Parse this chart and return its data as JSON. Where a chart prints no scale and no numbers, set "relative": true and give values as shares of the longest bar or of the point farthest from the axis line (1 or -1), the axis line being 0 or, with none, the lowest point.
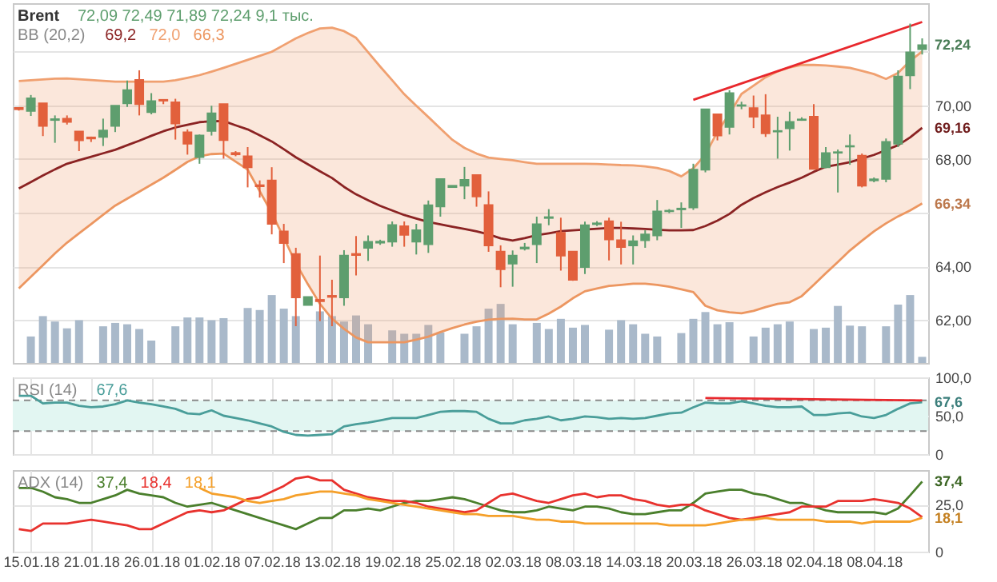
{
  "chart_data": [
    {
      "type": "candlestick",
      "title": "Brent",
      "subtitle": "72,09  72,49  71,89  72,24  9,1 тыс.",
      "legend_title": "BB (20,2)",
      "grid": true,
      "tick_labels": "y",
      "categories": [
        null,
        "15.01.18",
        null,
        null,
        null,
        null,
        "21.01.18",
        null,
        null,
        null,
        null,
        "26.01.18",
        null,
        null,
        null,
        null,
        "01.02.18",
        null,
        null,
        null,
        null,
        "07.02.18",
        null,
        null,
        null,
        null,
        "13.02.18",
        null,
        null,
        null,
        null,
        "19.02.18",
        null,
        null,
        null,
        null,
        "25.02.18",
        null,
        null,
        null,
        null,
        "02.03.18",
        null,
        null,
        null,
        null,
        "08.03.18",
        null,
        null,
        null,
        null,
        "14.03.18",
        null,
        null,
        null,
        null,
        "20.03.18",
        null,
        null,
        null,
        null,
        "26.03.18",
        null,
        null,
        null,
        null,
        "02.04.18",
        null,
        null,
        null,
        null,
        "08.04.18",
        null,
        null,
        null,
        null
      ],
      "ohlc": [
        [
          69.9,
          69.9,
          69.8,
          69.85
        ],
        [
          69.79,
          70.38,
          69.6,
          70.26
        ],
        [
          70.07,
          70.07,
          68.85,
          69.23
        ],
        [
          69.45,
          69.62,
          68.6,
          69.48
        ],
        [
          69.5,
          69.62,
          69.28,
          69.38
        ],
        [
          69.02,
          69.02,
          68.29,
          68.69
        ],
        [
          68.8,
          68.83,
          68.63,
          68.76
        ],
        [
          68.82,
          69.5,
          68.48,
          69.06
        ],
        [
          69.23,
          69.98,
          69.0,
          69.98
        ],
        [
          70.07,
          70.92,
          69.94,
          70.56
        ],
        [
          70.94,
          71.3,
          69.62,
          70.04
        ],
        [
          69.74,
          70.45,
          69.66,
          70.15
        ],
        [
          70.2,
          70.2,
          70.04,
          70.17
        ],
        [
          70.11,
          70.24,
          68.72,
          69.32
        ],
        [
          68.99,
          69.1,
          68.16,
          68.57
        ],
        [
          68.07,
          68.91,
          67.82,
          68.87
        ],
        [
          69.04,
          69.98,
          68.87,
          69.7
        ],
        [
          70.04,
          70.04,
          68.01,
          68.7
        ],
        [
          68.22,
          68.29,
          68.1,
          68.17
        ],
        [
          68.1,
          68.44,
          66.94,
          67.69
        ],
        [
          67.02,
          67.2,
          66.56,
          66.98
        ],
        [
          67.2,
          67.69,
          65.19,
          65.58
        ],
        [
          65.3,
          65.58,
          64.12,
          64.87
        ],
        [
          64.46,
          64.69,
          61.77,
          62.84
        ],
        [
          62.56,
          62.86,
          62.56,
          62.86
        ],
        [
          62.75,
          64.4,
          61.96,
          62.7
        ],
        [
          62.9,
          63.5,
          61.77,
          62.86
        ],
        [
          62.84,
          64.6,
          62.53,
          64.4
        ],
        [
          64.46,
          65.13,
          63.66,
          64.42
        ],
        [
          64.69,
          65.15,
          64.2,
          64.91
        ],
        [
          64.88,
          64.99,
          64.8,
          64.92
        ],
        [
          64.92,
          65.67,
          64.73,
          65.54
        ],
        [
          65.49,
          65.67,
          64.73,
          65.17
        ],
        [
          64.92,
          65.58,
          64.44,
          65.34
        ],
        [
          64.82,
          66.45,
          64.5,
          66.27
        ],
        [
          66.23,
          67.25,
          65.85,
          67.25
        ],
        [
          66.95,
          67.0,
          66.95,
          67.0
        ],
        [
          67.0,
          67.7,
          66.5,
          67.22
        ],
        [
          67.4,
          67.4,
          66.22,
          66.6
        ],
        [
          66.28,
          66.79,
          64.54,
          64.78
        ],
        [
          64.55,
          64.78,
          63.22,
          63.89
        ],
        [
          64.1,
          64.59,
          63.24,
          64.4
        ],
        [
          64.66,
          64.87,
          64.59,
          64.7
        ],
        [
          64.82,
          65.85,
          64.12,
          65.57
        ],
        [
          65.8,
          66.13,
          65.53,
          65.83
        ],
        [
          65.25,
          65.81,
          63.84,
          64.4
        ],
        [
          64.55,
          64.55,
          63.46,
          63.5
        ],
        [
          63.97,
          65.66,
          63.71,
          65.53
        ],
        [
          65.57,
          65.68,
          65.5,
          65.6
        ],
        [
          65.68,
          65.81,
          64.22,
          65.0
        ],
        [
          64.97,
          65.66,
          64.07,
          64.72
        ],
        [
          64.78,
          65.15,
          64.07,
          64.93
        ],
        [
          64.97,
          65.34,
          64.69,
          65.19
        ],
        [
          65.15,
          66.47,
          64.97,
          66.04
        ],
        [
          66.05,
          66.13,
          65.98,
          66.07
        ],
        [
          66.12,
          66.38,
          65.43,
          66.15
        ],
        [
          66.19,
          67.82,
          66.1,
          67.6
        ],
        [
          67.6,
          69.85,
          67.5,
          69.85
        ],
        [
          69.66,
          69.66,
          68.69,
          68.87
        ],
        [
          69.19,
          70.56,
          68.91,
          70.45
        ],
        [
          69.98,
          70.13,
          69.85,
          70.0
        ],
        [
          69.89,
          70.36,
          69.15,
          69.57
        ],
        [
          69.62,
          70.41,
          68.82,
          68.95
        ],
        [
          69.02,
          69.57,
          68.01,
          69.04
        ],
        [
          69.14,
          69.76,
          68.31,
          69.38
        ],
        [
          69.45,
          69.55,
          69.42,
          69.47
        ],
        [
          69.57,
          70.04,
          67.63,
          67.63
        ],
        [
          67.69,
          68.44,
          67.65,
          68.22
        ],
        [
          68.23,
          68.35,
          66.75,
          68.25
        ],
        [
          68.46,
          68.91,
          67.78,
          68.48
        ],
        [
          68.12,
          68.2,
          66.94,
          67.0
        ],
        [
          67.2,
          67.31,
          67.13,
          67.24
        ],
        [
          67.26,
          68.76,
          67.13,
          68.63
        ],
        [
          68.57,
          71.3,
          68.44,
          71.07
        ],
        [
          71.11,
          73.04,
          70.6,
          71.97
        ],
        [
          72.09,
          72.49,
          71.89,
          72.24
        ]
      ],
      "colors": [
        "#e2603c",
        "#5e9e6e",
        "#e2603c",
        "#5e9e6e",
        "#e2603c",
        "#e2603c",
        "#e2603c",
        "#5e9e6e",
        "#5e9e6e",
        "#5e9e6e",
        "#e2603c",
        "#5e9e6e",
        "#e2603c",
        "#e2603c",
        "#e2603c",
        "#5e9e6e",
        "#5e9e6e",
        "#e2603c",
        "#e2603c",
        "#e2603c",
        "#e2603c",
        "#e2603c",
        "#e2603c",
        "#e2603c",
        "#5e9e6e",
        "#e2603c",
        "#e2603c",
        "#5e9e6e",
        "#e2603c",
        "#5e9e6e",
        "#5e9e6e",
        "#5e9e6e",
        "#e2603c",
        "#5e9e6e",
        "#5e9e6e",
        "#5e9e6e",
        "#5e9e6e",
        "#5e9e6e",
        "#e2603c",
        "#e2603c",
        "#e2603c",
        "#5e9e6e",
        "#5e9e6e",
        "#5e9e6e",
        "#5e9e6e",
        "#e2603c",
        "#e2603c",
        "#5e9e6e",
        "#5e9e6e",
        "#e2603c",
        "#e2603c",
        "#5e9e6e",
        "#5e9e6e",
        "#5e9e6e",
        "#5e9e6e",
        "#5e9e6e",
        "#5e9e6e",
        "#5e9e6e",
        "#e2603c",
        "#5e9e6e",
        "#5e9e6e",
        "#e2603c",
        "#e2603c",
        "#5e9e6e",
        "#5e9e6e",
        "#5e9e6e",
        "#e2603c",
        "#5e9e6e",
        "#5e9e6e",
        "#5e9e6e",
        "#e2603c",
        "#5e9e6e",
        "#5e9e6e",
        "#5e9e6e",
        "#5e9e6e",
        "#5e9e6e"
      ],
      "series": [
        {
          "name": "69,2",
          "type": "line",
          "color": "#8b2323",
          "values": [
            66.9,
            67.14,
            67.38,
            67.61,
            67.82,
            67.95,
            68.08,
            68.21,
            68.34,
            68.51,
            68.68,
            68.86,
            69.03,
            69.17,
            69.27,
            69.37,
            69.4,
            69.41,
            69.25,
            69.1,
            68.88,
            68.65,
            68.36,
            68.06,
            67.8,
            67.54,
            67.29,
            66.96,
            66.68,
            66.46,
            66.25,
            66.08,
            65.91,
            65.78,
            65.65,
            65.56,
            65.47,
            65.39,
            65.3,
            65.19,
            65.04,
            64.96,
            65.05,
            65.16,
            65.23,
            65.31,
            65.34,
            65.37,
            65.4,
            65.43,
            65.43,
            65.41,
            65.39,
            65.36,
            65.34,
            65.34,
            65.35,
            65.5,
            65.7,
            65.95,
            66.29,
            66.54,
            66.76,
            66.95,
            67.12,
            67.3,
            67.52,
            67.71,
            67.79,
            67.88,
            68.01,
            68.15,
            68.33,
            68.51,
            68.8,
            69.16
          ],
          "value_labels": [
            null,
            null,
            null,
            null,
            null,
            null,
            null,
            null,
            null,
            null,
            null,
            null,
            null,
            null,
            null,
            null,
            null,
            null,
            null,
            null,
            null,
            null,
            null,
            null,
            null,
            null,
            null,
            null,
            null,
            null,
            null,
            null,
            null,
            null,
            null,
            null,
            null,
            null,
            null,
            null,
            null,
            null,
            null,
            null,
            null,
            null,
            null,
            null,
            null,
            null,
            null,
            null,
            null,
            null,
            null,
            null,
            null,
            null,
            null,
            null,
            null,
            null,
            null,
            null,
            null,
            null,
            null,
            null,
            null,
            null,
            null,
            null,
            null,
            null,
            null,
            "69,16"
          ],
          "upper": [
            70.9,
            70.93,
            70.96,
            70.99,
            71.0,
            70.97,
            70.94,
            70.91,
            70.88,
            70.88,
            70.88,
            70.88,
            70.88,
            70.93,
            71.02,
            71.12,
            71.25,
            71.39,
            71.54,
            71.69,
            71.84,
            71.99,
            72.24,
            72.49,
            72.69,
            72.86,
            72.89,
            72.76,
            72.51,
            71.97,
            71.44,
            70.93,
            70.41,
            69.98,
            69.56,
            69.13,
            68.71,
            68.41,
            68.2,
            68.05,
            68.0,
            67.95,
            67.88,
            67.82,
            67.82,
            67.82,
            67.82,
            67.82,
            67.81,
            67.79,
            67.77,
            67.76,
            67.72,
            67.66,
            67.55,
            67.35,
            67.65,
            68.16,
            69.01,
            69.68,
            70.42,
            70.73,
            71.04,
            71.26,
            71.41,
            71.5,
            71.5,
            71.48,
            71.44,
            71.39,
            71.28,
            71.16,
            70.98,
            71.2,
            71.65,
            72.0
          ],
          "lower": [
            63.18,
            63.61,
            64.04,
            64.48,
            64.88,
            65.23,
            65.57,
            65.92,
            66.26,
            66.52,
            66.78,
            67.04,
            67.3,
            67.59,
            67.89,
            68.1,
            68.18,
            68.2,
            67.9,
            67.6,
            66.8,
            65.99,
            65.06,
            64.12,
            63.33,
            62.6,
            62.05,
            61.67,
            61.35,
            61.17,
            61.17,
            61.17,
            61.17,
            61.27,
            61.38,
            61.55,
            61.7,
            61.83,
            61.94,
            62.01,
            62.04,
            62.05,
            62.02,
            62.02,
            62.24,
            62.5,
            62.81,
            63.07,
            63.17,
            63.27,
            63.31,
            63.35,
            63.35,
            63.31,
            63.24,
            63.14,
            63.04,
            62.53,
            62.36,
            62.29,
            62.25,
            62.34,
            62.48,
            62.6,
            62.66,
            62.89,
            63.31,
            63.74,
            64.16,
            64.59,
            64.95,
            65.3,
            65.6,
            65.86,
            66.08,
            66.34
          ]
        },
        {
          "name": "72,0",
          "type": "line",
          "color": "#f0a070",
          "values": [
            70.9,
            70.93,
            70.96,
            70.99,
            71.0,
            70.97,
            70.94,
            70.91,
            70.88,
            70.88,
            70.88,
            70.88,
            70.88,
            70.93,
            71.02,
            71.12,
            71.25,
            71.39,
            71.54,
            71.69,
            71.84,
            71.99,
            72.24,
            72.49,
            72.69,
            72.86,
            72.89,
            72.76,
            72.51,
            71.97,
            71.44,
            70.93,
            70.41,
            69.98,
            69.56,
            69.13,
            68.71,
            68.41,
            68.2,
            68.05,
            68.0,
            67.95,
            67.88,
            67.82,
            67.82,
            67.82,
            67.82,
            67.82,
            67.81,
            67.79,
            67.77,
            67.76,
            67.72,
            67.66,
            67.55,
            67.35,
            67.65,
            68.16,
            69.01,
            69.68,
            70.42,
            70.73,
            71.04,
            71.26,
            71.41,
            71.5,
            71.5,
            71.48,
            71.44,
            71.39,
            71.28,
            71.16,
            70.98,
            71.2,
            71.65,
            72.0
          ]
        },
        {
          "name": "66,3",
          "type": "line",
          "color": "#ec9660",
          "values": [
            63.18,
            63.61,
            64.04,
            64.48,
            64.88,
            65.23,
            65.57,
            65.92,
            66.26,
            66.52,
            66.78,
            67.04,
            67.3,
            67.59,
            67.89,
            68.1,
            68.18,
            68.2,
            67.9,
            67.6,
            66.8,
            65.99,
            65.06,
            64.12,
            63.33,
            62.6,
            62.05,
            61.67,
            61.35,
            61.17,
            61.17,
            61.17,
            61.17,
            61.27,
            61.38,
            61.55,
            61.7,
            61.83,
            61.94,
            62.01,
            62.04,
            62.05,
            62.02,
            62.02,
            62.24,
            62.5,
            62.81,
            63.07,
            63.17,
            63.27,
            63.31,
            63.35,
            63.35,
            63.31,
            63.24,
            63.14,
            63.04,
            62.53,
            62.36,
            62.29,
            62.25,
            62.34,
            62.48,
            62.6,
            62.66,
            62.89,
            63.31,
            63.74,
            64.16,
            64.59,
            64.95,
            65.3,
            65.6,
            65.86,
            66.08,
            66.34
          ],
          "value_labels": [
            null,
            null,
            null,
            null,
            null,
            null,
            null,
            null,
            null,
            null,
            null,
            null,
            null,
            null,
            null,
            null,
            null,
            null,
            null,
            null,
            null,
            null,
            null,
            null,
            null,
            null,
            null,
            null,
            null,
            null,
            null,
            null,
            null,
            null,
            null,
            null,
            null,
            null,
            null,
            null,
            null,
            null,
            null,
            null,
            null,
            null,
            null,
            null,
            null,
            null,
            null,
            null,
            null,
            null,
            null,
            null,
            null,
            null,
            null,
            null,
            null,
            null,
            null,
            null,
            null,
            null,
            null,
            null,
            null,
            null,
            null,
            null,
            null,
            null,
            null,
            "66,34"
          ]
        },
        {
          "type": "line",
          "color": "#e8282d",
          "values": [
            null,
            null,
            null,
            null,
            null,
            null,
            null,
            null,
            null,
            null,
            null,
            null,
            null,
            null,
            null,
            null,
            null,
            null,
            null,
            null,
            null,
            null,
            null,
            null,
            null,
            null,
            null,
            null,
            null,
            null,
            null,
            null,
            null,
            null,
            null,
            null,
            null,
            null,
            null,
            null,
            null,
            null,
            null,
            null,
            null,
            null,
            null,
            null,
            null,
            null,
            null,
            null,
            null,
            null,
            null,
            null,
            70.2,
            null,
            null,
            null,
            null,
            null,
            null,
            null,
            null,
            null,
            null,
            null,
            null,
            null,
            null,
            null,
            null,
            null,
            null,
            73.1
          ]
        }
      ],
      "ylim": [
        60.4,
        73.8
      ],
      "yticks": [
        {
          "value": 62,
          "label": "62,00"
        },
        {
          "value": 64,
          "label": "64,00"
        },
        {
          "value": 66,
          "label": null
        },
        {
          "value": 68,
          "label": "68,00"
        },
        {
          "value": 70,
          "label": "70,00"
        },
        {
          "value": 72,
          "label": null
        }
      ],
      "annotations": [
        "72,24"
      ]
    },
    {
      "type": "bar",
      "relative": true,
      "tick_labels": false,
      "color": "#a9b9ca",
      "categories": [
        null,
        "15.01.18",
        null,
        null,
        null,
        null,
        "21.01.18",
        null,
        null,
        null,
        null,
        "26.01.18",
        null,
        null,
        null,
        null,
        "01.02.18",
        null,
        null,
        null,
        null,
        "07.02.18",
        null,
        null,
        null,
        null,
        "13.02.18",
        null,
        null,
        null,
        null,
        "19.02.18",
        null,
        null,
        null,
        null,
        "25.02.18",
        null,
        null,
        null,
        null,
        "02.03.18",
        null,
        null,
        null,
        null,
        "08.03.18",
        null,
        null,
        null,
        null,
        "14.03.18",
        null,
        null,
        null,
        null,
        "20.03.18",
        null,
        null,
        null,
        null,
        "26.03.18",
        null,
        null,
        null,
        null,
        "02.04.18",
        null,
        null,
        null,
        null,
        "08.04.18",
        null,
        null,
        null,
        null
      ],
      "values": [
        null,
        0.39,
        0.69,
        0.61,
        0.51,
        0.63,
        null,
        0.54,
        0.59,
        0.57,
        0.5,
        0.33,
        null,
        0.54,
        0.67,
        0.67,
        0.63,
        0.66,
        null,
        0.81,
        0.78,
        1,
        0.8,
        0.69,
        null,
        0.76,
        0.69,
        0.61,
        0.7,
        0.57,
        null,
        0.48,
        0.43,
        0.43,
        0.56,
        0.45,
        null,
        0.43,
        0.54,
        0.8,
        0.87,
        0.57,
        null,
        0.59,
        0.5,
        0.65,
        0.52,
        0.56,
        null,
        0.49,
        0.63,
        0.57,
        0.43,
        0.39,
        null,
        0.44,
        0.65,
        0.75,
        0.57,
        0.6,
        null,
        0.39,
        0.52,
        0.57,
        0.61,
        null,
        0.5,
        0.52,
        0.84,
        0.55,
        0.54,
        null,
        0.54,
        0.86,
        1,
        0.09
      ]
    },
    {
      "type": "line",
      "legend_title": "RSI (14)",
      "grid": true,
      "tick_labels": "y",
      "ylim": [
        0,
        100
      ],
      "categories": [
        null,
        "15.01.18",
        null,
        null,
        null,
        null,
        "21.01.18",
        null,
        null,
        null,
        null,
        "26.01.18",
        null,
        null,
        null,
        null,
        "01.02.18",
        null,
        null,
        null,
        null,
        "07.02.18",
        null,
        null,
        null,
        null,
        "13.02.18",
        null,
        null,
        null,
        null,
        "19.02.18",
        null,
        null,
        null,
        null,
        "25.02.18",
        null,
        null,
        null,
        null,
        "02.03.18",
        null,
        null,
        null,
        null,
        "08.03.18",
        null,
        null,
        null,
        null,
        "14.03.18",
        null,
        null,
        null,
        null,
        "20.03.18",
        null,
        null,
        null,
        null,
        "26.03.18",
        null,
        null,
        null,
        null,
        "02.04.18",
        null,
        null,
        null,
        null,
        "08.04.18",
        null,
        null,
        null,
        null
      ],
      "yticks": [
        {
          "value": 100,
          "label": "100,0"
        },
        {
          "value": 50,
          "label": "50,0"
        },
        0
      ],
      "bands": [
        {
          "axis": "y",
          "from": 30,
          "to": 70,
          "color": "#e2f6f2"
        }
      ],
      "ref_lines": [
        {
          "axis": "y",
          "value": 70,
          "color": "#8a8a8a",
          "line_style": "dashed"
        },
        {
          "axis": "y",
          "value": 30,
          "color": "#8a8a8a",
          "line_style": "dashed"
        }
      ],
      "series": [
        {
          "name": "67,6",
          "color": "#4a9e9a",
          "values": [
            76,
            76,
            66,
            67,
            67,
            63,
            61,
            62,
            65,
            70,
            67,
            65,
            62,
            59,
            53,
            52,
            57,
            50,
            47,
            44,
            40,
            36,
            29,
            25,
            24,
            25,
            26,
            36,
            39,
            41,
            44,
            47,
            47,
            47,
            51,
            55,
            56,
            56,
            55,
            46,
            40,
            40,
            44,
            46,
            49,
            44,
            46,
            49,
            48,
            46,
            47,
            46,
            47,
            50,
            53,
            54,
            61,
            67,
            66,
            66,
            69,
            66,
            63,
            61,
            61,
            62,
            51,
            51,
            53,
            54,
            49,
            47,
            51,
            59,
            66,
            67.6
          ],
          "value_labels": [
            null,
            null,
            null,
            null,
            null,
            null,
            null,
            null,
            null,
            null,
            null,
            null,
            null,
            null,
            null,
            null,
            null,
            null,
            null,
            null,
            null,
            null,
            null,
            null,
            null,
            null,
            null,
            null,
            null,
            null,
            null,
            null,
            null,
            null,
            null,
            null,
            null,
            null,
            null,
            null,
            null,
            null,
            null,
            null,
            null,
            null,
            null,
            null,
            null,
            null,
            null,
            null,
            null,
            null,
            null,
            null,
            null,
            null,
            null,
            null,
            null,
            null,
            null,
            null,
            null,
            null,
            null,
            null,
            null,
            null,
            null,
            null,
            null,
            null,
            null,
            "67,6"
          ]
        },
        {
          "color": "#e8282d",
          "values": [
            null,
            null,
            null,
            null,
            null,
            null,
            null,
            null,
            null,
            null,
            null,
            null,
            null,
            null,
            null,
            null,
            null,
            null,
            null,
            null,
            null,
            null,
            null,
            null,
            null,
            null,
            null,
            null,
            null,
            null,
            null,
            null,
            null,
            null,
            null,
            null,
            null,
            null,
            null,
            null,
            null,
            null,
            null,
            null,
            null,
            null,
            null,
            null,
            null,
            null,
            null,
            null,
            null,
            null,
            null,
            null,
            null,
            73,
            null,
            null,
            null,
            null,
            null,
            null,
            null,
            null,
            null,
            null,
            null,
            null,
            null,
            null,
            null,
            null,
            null,
            70
          ]
        }
      ]
    },
    {
      "type": "line",
      "legend_title": "ADX (14)",
      "grid": true,
      "ylim": [
        0,
        43.5
      ],
      "categories": [
        null,
        "15.01.18",
        null,
        null,
        null,
        null,
        "21.01.18",
        null,
        null,
        null,
        null,
        "26.01.18",
        null,
        null,
        null,
        null,
        "01.02.18",
        null,
        null,
        null,
        null,
        "07.02.18",
        null,
        null,
        null,
        null,
        "13.02.18",
        null,
        null,
        null,
        null,
        "19.02.18",
        null,
        null,
        null,
        null,
        "25.02.18",
        null,
        null,
        null,
        null,
        "02.03.18",
        null,
        null,
        null,
        null,
        "08.03.18",
        null,
        null,
        null,
        null,
        "14.03.18",
        null,
        null,
        null,
        null,
        "20.03.18",
        null,
        null,
        null,
        null,
        "26.03.18",
        null,
        null,
        null,
        null,
        "02.04.18",
        null,
        null,
        null,
        null,
        "08.04.18",
        null,
        null,
        null,
        null
      ],
      "yticks": [
        {
          "value": 25,
          "label": "25,0"
        },
        0
      ],
      "series": [
        {
          "name": "37,4",
          "color": "#4a7f2c",
          "values": [
            34,
            34,
            32,
            29,
            28,
            26,
            26,
            28,
            30,
            33,
            31,
            30,
            29,
            26,
            24,
            25,
            26,
            24,
            22,
            20,
            18,
            16,
            14,
            12,
            15,
            18,
            18,
            22,
            22,
            23,
            22,
            24,
            26,
            27,
            27,
            28,
            29,
            28,
            26,
            24,
            22,
            21,
            21,
            22,
            24,
            23,
            22,
            24,
            24,
            23,
            21,
            20,
            20,
            21,
            22,
            22,
            26,
            31,
            32,
            33,
            33,
            31,
            30,
            28,
            26,
            26,
            24,
            22,
            21,
            21,
            21,
            21,
            20,
            23,
            30,
            37.4
          ],
          "value_labels": [
            null,
            null,
            null,
            null,
            null,
            null,
            null,
            null,
            null,
            null,
            null,
            null,
            null,
            null,
            null,
            null,
            null,
            null,
            null,
            null,
            null,
            null,
            null,
            null,
            null,
            null,
            null,
            null,
            null,
            null,
            null,
            null,
            null,
            null,
            null,
            null,
            null,
            null,
            null,
            null,
            null,
            null,
            null,
            null,
            null,
            null,
            null,
            null,
            null,
            null,
            null,
            null,
            null,
            null,
            null,
            null,
            null,
            null,
            null,
            null,
            null,
            null,
            null,
            null,
            null,
            null,
            null,
            null,
            null,
            null,
            null,
            null,
            null,
            null,
            null,
            "37,4"
          ]
        },
        {
          "name": "18,4",
          "color": "#e8322e",
          "values": [
            12,
            11,
            15,
            15,
            15,
            16,
            17,
            16,
            15,
            14,
            12,
            12,
            15,
            18,
            21,
            22,
            21,
            22,
            25,
            28,
            29,
            32,
            35,
            39,
            40,
            38,
            38,
            33,
            31,
            29,
            28,
            27,
            27,
            26,
            24,
            23,
            22,
            21,
            22,
            26,
            30,
            31,
            29,
            27,
            26,
            28,
            30,
            31,
            29,
            30,
            30,
            28,
            27,
            25,
            24,
            25,
            25,
            22,
            20,
            18,
            17,
            18,
            19,
            20,
            21,
            24,
            24,
            24,
            27,
            27,
            27,
            28,
            27,
            26,
            23,
            18.4
          ]
        },
        {
          "name": "18,1",
          "color": "#f5a02a",
          "values": [
            null,
            null,
            null,
            null,
            null,
            null,
            null,
            null,
            null,
            null,
            null,
            null,
            null,
            null,
            null,
            34,
            31,
            30,
            29,
            27,
            26,
            27,
            28,
            30,
            31,
            32,
            32,
            31,
            30,
            28,
            27,
            26,
            25,
            24,
            23,
            22,
            21,
            20,
            20,
            19,
            19,
            19,
            18,
            17,
            17,
            16,
            16,
            15,
            15,
            15,
            15,
            15,
            15,
            15,
            14,
            14,
            14,
            14,
            15,
            16,
            17,
            17,
            18,
            17,
            17,
            17,
            17,
            16,
            16,
            16,
            15,
            16,
            16,
            16,
            16,
            18.1
          ],
          "value_labels": [
            null,
            null,
            null,
            null,
            null,
            null,
            null,
            null,
            null,
            null,
            null,
            null,
            null,
            null,
            null,
            null,
            null,
            null,
            null,
            null,
            null,
            null,
            null,
            null,
            null,
            null,
            null,
            null,
            null,
            null,
            null,
            null,
            null,
            null,
            null,
            null,
            null,
            null,
            null,
            null,
            null,
            null,
            null,
            null,
            null,
            null,
            null,
            null,
            null,
            null,
            null,
            null,
            null,
            null,
            null,
            null,
            null,
            null,
            null,
            null,
            null,
            null,
            null,
            null,
            null,
            null,
            null,
            null,
            null,
            null,
            null,
            null,
            null,
            null,
            null,
            "18,1"
          ]
        }
      ]
    }
  ]
}
